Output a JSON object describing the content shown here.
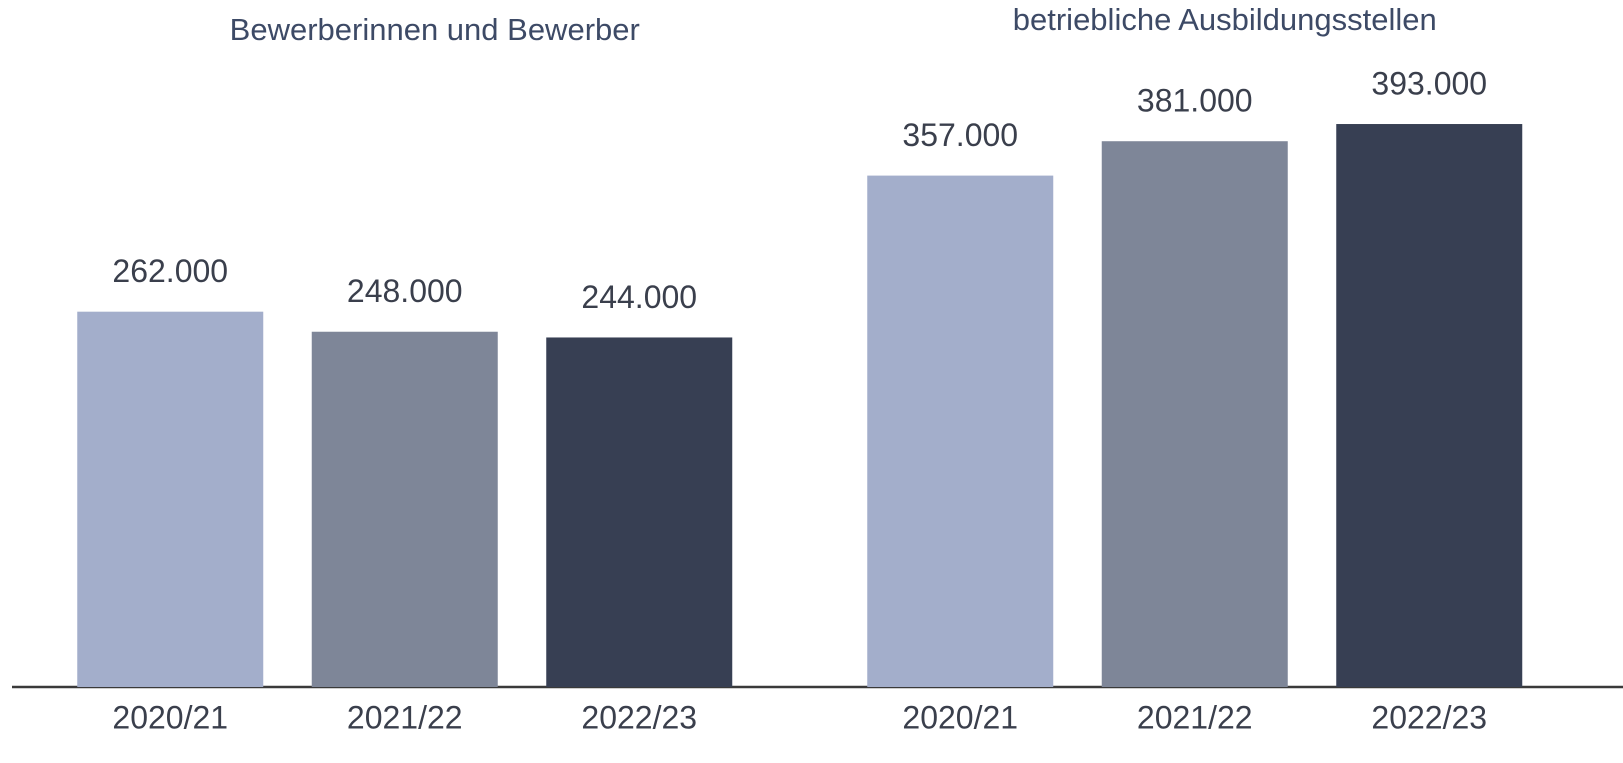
{
  "chart_data": [
    {
      "type": "bar",
      "title": "Bewerberinnen und Bewerber",
      "categories": [
        "2020/21",
        "2021/22",
        "2022/23"
      ],
      "values": [
        262000,
        248000,
        244000
      ],
      "value_labels": [
        "262.000",
        "248.000",
        "244.000"
      ],
      "colors": [
        "#a3aecb",
        "#7e8698",
        "#373f53"
      ],
      "ylim": [
        0,
        400000
      ]
    },
    {
      "type": "bar",
      "title": "betriebliche Ausbildungsstellen",
      "categories": [
        "2020/21",
        "2021/22",
        "2022/23"
      ],
      "values": [
        357000,
        381000,
        393000
      ],
      "value_labels": [
        "357.000",
        "381.000",
        "393.000"
      ],
      "colors": [
        "#a3aecb",
        "#7e8698",
        "#373f53"
      ],
      "ylim": [
        0,
        400000
      ]
    }
  ]
}
